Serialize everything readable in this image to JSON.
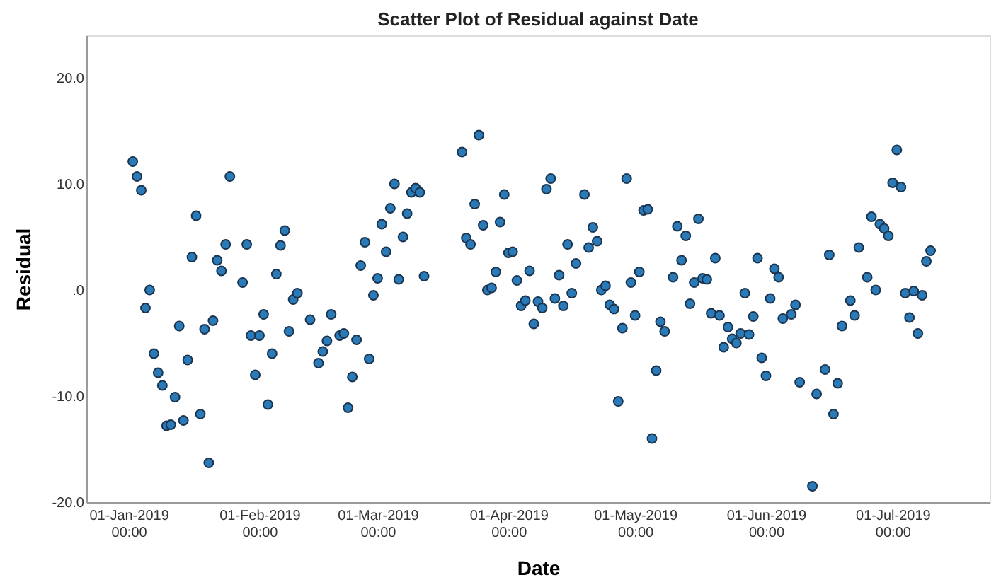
{
  "chart_data": {
    "type": "scatter",
    "title": "Scatter Plot of Residual against Date",
    "xlabel": "Date",
    "ylabel": "Residual",
    "xlim": [
      "2018-12-22",
      "2019-07-24"
    ],
    "xticks": [
      {
        "value": "2019-01-01",
        "label": "01-Jan-2019 00:00"
      },
      {
        "value": "2019-02-01",
        "label": "01-Feb-2019 00:00"
      },
      {
        "value": "2019-03-01",
        "label": "01-Mar-2019 00:00"
      },
      {
        "value": "2019-04-01",
        "label": "01-Apr-2019 00:00"
      },
      {
        "value": "2019-05-01",
        "label": "01-May-2019 00:00"
      },
      {
        "value": "2019-06-01",
        "label": "01-Jun-2019 00:00"
      },
      {
        "value": "2019-07-01",
        "label": "01-Jul-2019 00:00"
      }
    ],
    "ylim": [
      -20,
      24
    ],
    "yticks": [
      {
        "value": -20,
        "label": "-20.0"
      },
      {
        "value": -10,
        "label": "-10.0"
      },
      {
        "value": 0,
        "label": ".0"
      },
      {
        "value": 10,
        "label": "10.0"
      },
      {
        "value": 20,
        "label": "20.0"
      }
    ],
    "grid": false,
    "marker": "circle",
    "series": [
      {
        "color": "#2a7ab8",
        "x": [
          "2019-01-02",
          "2019-01-03",
          "2019-01-04",
          "2019-01-05",
          "2019-01-06",
          "2019-01-07",
          "2019-01-08",
          "2019-01-09",
          "2019-01-10",
          "2019-01-11",
          "2019-01-12",
          "2019-01-13",
          "2019-01-14",
          "2019-01-15",
          "2019-01-16",
          "2019-01-17",
          "2019-01-18",
          "2019-01-19",
          "2019-01-20",
          "2019-01-21",
          "2019-01-22",
          "2019-01-23",
          "2019-01-24",
          "2019-01-25",
          "2019-01-28",
          "2019-01-29",
          "2019-01-30",
          "2019-01-31",
          "2019-02-01",
          "2019-02-02",
          "2019-02-03",
          "2019-02-04",
          "2019-02-05",
          "2019-02-06",
          "2019-02-07",
          "2019-02-08",
          "2019-02-09",
          "2019-02-10",
          "2019-02-13",
          "2019-02-15",
          "2019-02-16",
          "2019-02-17",
          "2019-02-18",
          "2019-02-20",
          "2019-02-21",
          "2019-02-22",
          "2019-02-23",
          "2019-02-24",
          "2019-02-25",
          "2019-02-26",
          "2019-02-27",
          "2019-02-28",
          "2019-03-01",
          "2019-03-02",
          "2019-03-03",
          "2019-03-04",
          "2019-03-05",
          "2019-03-06",
          "2019-03-07",
          "2019-03-08",
          "2019-03-09",
          "2019-03-10",
          "2019-03-11",
          "2019-03-12",
          "2019-03-21",
          "2019-03-22",
          "2019-03-23",
          "2019-03-24",
          "2019-03-25",
          "2019-03-26",
          "2019-03-27",
          "2019-03-28",
          "2019-03-29",
          "2019-03-30",
          "2019-03-31",
          "2019-04-01",
          "2019-04-02",
          "2019-04-03",
          "2019-04-04",
          "2019-04-05",
          "2019-04-06",
          "2019-04-07",
          "2019-04-08",
          "2019-04-09",
          "2019-04-10",
          "2019-04-11",
          "2019-04-12",
          "2019-04-13",
          "2019-04-14",
          "2019-04-15",
          "2019-04-16",
          "2019-04-17",
          "2019-04-19",
          "2019-04-20",
          "2019-04-21",
          "2019-04-22",
          "2019-04-23",
          "2019-04-24",
          "2019-04-25",
          "2019-04-26",
          "2019-04-27",
          "2019-04-28",
          "2019-04-29",
          "2019-04-30",
          "2019-05-01",
          "2019-05-02",
          "2019-05-03",
          "2019-05-04",
          "2019-05-05",
          "2019-05-06",
          "2019-05-07",
          "2019-05-08",
          "2019-05-10",
          "2019-05-11",
          "2019-05-12",
          "2019-05-13",
          "2019-05-14",
          "2019-05-15",
          "2019-05-16",
          "2019-05-17",
          "2019-05-18",
          "2019-05-19",
          "2019-05-20",
          "2019-05-21",
          "2019-05-22",
          "2019-05-23",
          "2019-05-24",
          "2019-05-25",
          "2019-05-26",
          "2019-05-27",
          "2019-05-28",
          "2019-05-29",
          "2019-05-30",
          "2019-05-31",
          "2019-06-01",
          "2019-06-02",
          "2019-06-03",
          "2019-06-04",
          "2019-06-05",
          "2019-06-07",
          "2019-06-08",
          "2019-06-09",
          "2019-06-12",
          "2019-06-13",
          "2019-06-15",
          "2019-06-16",
          "2019-06-17",
          "2019-06-18",
          "2019-06-19",
          "2019-06-21",
          "2019-06-22",
          "2019-06-23",
          "2019-06-25",
          "2019-06-26",
          "2019-06-27",
          "2019-06-28",
          "2019-06-29",
          "2019-06-30",
          "2019-07-01",
          "2019-07-02",
          "2019-07-03",
          "2019-07-04",
          "2019-07-05",
          "2019-07-06",
          "2019-07-07",
          "2019-07-08",
          "2019-07-09",
          "2019-07-10"
        ],
        "values": [
          12.1,
          10.7,
          9.4,
          -1.7,
          0.0,
          -6.0,
          -7.8,
          -9.0,
          -12.8,
          -12.7,
          -10.1,
          -3.4,
          -12.3,
          -6.6,
          3.1,
          7.0,
          -11.7,
          -3.7,
          -16.3,
          -2.9,
          2.8,
          1.8,
          4.3,
          10.7,
          0.7,
          4.3,
          -4.3,
          -8.0,
          -4.3,
          -2.3,
          -10.8,
          -6.0,
          1.5,
          4.2,
          5.6,
          -3.9,
          -0.9,
          -0.3,
          -2.8,
          -6.9,
          -5.8,
          -4.8,
          -2.3,
          -4.3,
          -4.1,
          -11.1,
          -8.2,
          -4.7,
          2.3,
          4.5,
          -6.5,
          -0.5,
          1.1,
          6.2,
          3.6,
          7.7,
          10.0,
          1.0,
          5.0,
          7.2,
          9.2,
          9.6,
          9.2,
          1.3,
          13.0,
          4.9,
          4.3,
          8.1,
          14.6,
          6.1,
          0.0,
          0.2,
          1.7,
          6.4,
          9.0,
          3.5,
          3.6,
          0.9,
          -1.5,
          -1.0,
          1.8,
          -3.2,
          -1.1,
          -1.7,
          9.5,
          10.5,
          -0.8,
          1.4,
          -1.5,
          4.3,
          -0.3,
          2.5,
          9.0,
          4.0,
          5.9,
          4.6,
          0.0,
          0.4,
          -1.4,
          -1.8,
          -10.5,
          -3.6,
          10.5,
          0.7,
          -2.4,
          1.7,
          7.5,
          7.6,
          -14.0,
          -7.6,
          -3.0,
          -3.9,
          1.2,
          6.0,
          2.8,
          5.1,
          -1.3,
          0.7,
          6.7,
          1.1,
          1.0,
          -2.2,
          3.0,
          -2.4,
          -5.4,
          -3.5,
          -4.6,
          -5.0,
          -4.1,
          -0.3,
          -4.2,
          -2.5,
          3.0,
          -6.4,
          -8.1,
          -0.8,
          2.0,
          1.2,
          -2.7,
          -2.3,
          -1.4,
          -8.7,
          -18.5,
          -9.8,
          -7.5,
          3.3,
          -11.7,
          -8.8,
          -3.4,
          -1.0,
          -2.4,
          4.0,
          1.2,
          6.9,
          0.0,
          6.2,
          5.8,
          5.1,
          10.1,
          13.2,
          9.7,
          -0.3,
          -2.6,
          -0.1,
          -4.1,
          -0.5,
          2.7,
          3.7
        ]
      }
    ]
  }
}
